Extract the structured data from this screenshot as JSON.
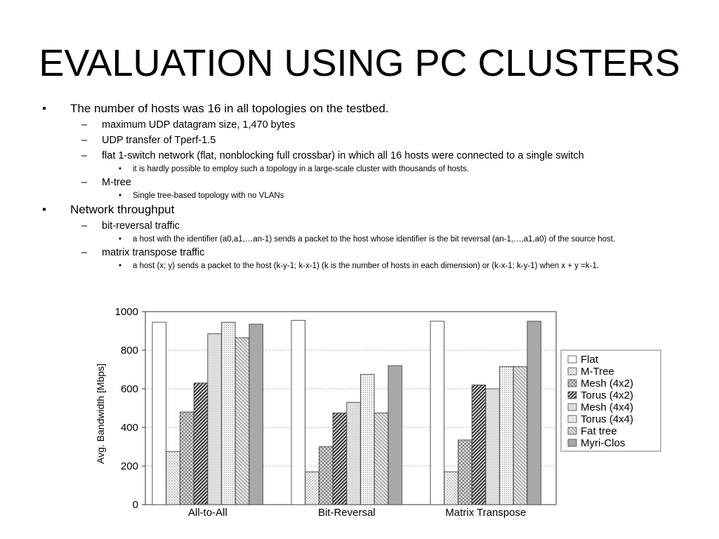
{
  "slide": {
    "title": "EVALUATION USING PC CLUSTERS",
    "bullets": [
      {
        "level": 1,
        "marker": "•",
        "text": "The number of hosts was 16 in all topologies on the testbed."
      },
      {
        "level": 2,
        "marker": "–",
        "text": "maximum UDP datagram size, 1,470 bytes"
      },
      {
        "level": 2,
        "marker": "–",
        "text": "UDP transfer of Tperf-1.5"
      },
      {
        "level": 2,
        "marker": "–",
        "text": "flat 1-switch network (flat, nonblocking full crossbar) in which all 16 hosts were connected to a single switch"
      },
      {
        "level": 3,
        "marker": "•",
        "text": "it is hardly possible to employ such a topology in a large-scale cluster with thousands of hosts."
      },
      {
        "level": 2,
        "marker": "–",
        "text": "M-tree"
      },
      {
        "level": 3,
        "marker": "•",
        "text": "Single tree-based topology with no VLANs"
      },
      {
        "level": 1,
        "marker": "•",
        "text": "Network throughput"
      },
      {
        "level": 2,
        "marker": "–",
        "text": "bit-reversal traffic"
      },
      {
        "level": 3,
        "marker": "•",
        "text": "a host with the identifier (a0,a1,…an-1) sends a packet to the host whose identifier is the bit reversal (an-1,…,a1,a0) of the source host."
      },
      {
        "level": 2,
        "marker": "–",
        "text": "matrix transpose traffic"
      },
      {
        "level": 3,
        "marker": "•",
        "text": "a host (x; y) sends a packet to the host (k-y-1; k-x-1) (k is the number of hosts in each dimension) or (k-x-1; k-y-1) when x + y =k-1."
      }
    ]
  },
  "chart_data": {
    "type": "bar",
    "title": "",
    "xlabel": "",
    "ylabel": "Avg. Bandwidth [Mbps]",
    "ylim": [
      0,
      1000
    ],
    "yticks": [
      0,
      200,
      400,
      600,
      800,
      1000
    ],
    "grid": true,
    "legend_position": "right",
    "categories": [
      "All-to-All",
      "Bit-Reversal",
      "Matrix Transpose"
    ],
    "series": [
      {
        "name": "Flat",
        "values": [
          945,
          955,
          950
        ],
        "pattern": "white",
        "color": "#ffffff"
      },
      {
        "name": "M-Tree",
        "values": [
          275,
          170,
          170
        ],
        "pattern": "dots",
        "color": "#ececec"
      },
      {
        "name": "Mesh (4x2)",
        "values": [
          480,
          300,
          335
        ],
        "pattern": "crosshatch",
        "color": "#d6d6d6"
      },
      {
        "name": "Torus (4x2)",
        "values": [
          630,
          475,
          620
        ],
        "pattern": "diagonal-dark",
        "color": "#6a6a6a"
      },
      {
        "name": "Mesh (4x4)",
        "values": [
          885,
          530,
          600
        ],
        "pattern": "light-grey",
        "color": "#dcdcdc"
      },
      {
        "name": "Torus (4x4)",
        "values": [
          945,
          675,
          715
        ],
        "pattern": "fine-dots",
        "color": "#e6e6e6"
      },
      {
        "name": "Fat tree",
        "values": [
          865,
          475,
          715
        ],
        "pattern": "diagonal-light",
        "color": "#d2d2d2"
      },
      {
        "name": "Myri-Clos",
        "values": [
          935,
          720,
          950
        ],
        "pattern": "dark-grey",
        "color": "#a8a8a8"
      }
    ]
  }
}
